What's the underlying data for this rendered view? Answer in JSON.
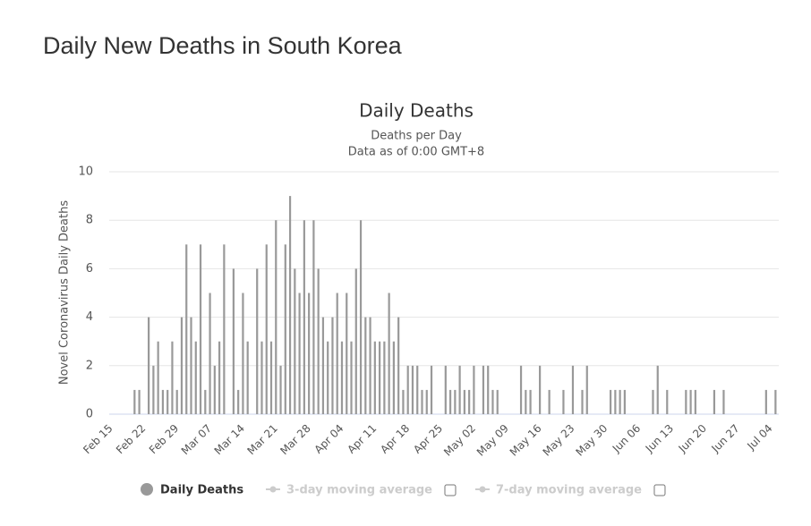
{
  "page_title": "Daily New Deaths in South Korea",
  "chart_data": {
    "type": "bar",
    "title": "Daily Deaths",
    "subtitle": [
      "Deaths per Day",
      "Data as of 0:00 GMT+8"
    ],
    "y_axis_label": "Novel Coronavirus Daily Deaths",
    "categories": [
      "Feb 15",
      null,
      null,
      null,
      null,
      null,
      null,
      "Feb 22",
      null,
      null,
      null,
      null,
      null,
      null,
      "Feb 29",
      null,
      null,
      null,
      null,
      null,
      null,
      "Mar 07",
      null,
      null,
      null,
      null,
      null,
      null,
      "Mar 14",
      null,
      null,
      null,
      null,
      null,
      null,
      "Mar 21",
      null,
      null,
      null,
      null,
      null,
      null,
      "Mar 28",
      null,
      null,
      null,
      null,
      null,
      null,
      "Apr 04",
      null,
      null,
      null,
      null,
      null,
      null,
      "Apr 11",
      null,
      null,
      null,
      null,
      null,
      null,
      "Apr 18",
      null,
      null,
      null,
      null,
      null,
      null,
      "Apr 25",
      null,
      null,
      null,
      null,
      null,
      null,
      "May 02",
      null,
      null,
      null,
      null,
      null,
      null,
      "May 09",
      null,
      null,
      null,
      null,
      null,
      null,
      "May 16",
      null,
      null,
      null,
      null,
      null,
      null,
      "May 23",
      null,
      null,
      null,
      null,
      null,
      null,
      "May 30",
      null,
      null,
      null,
      null,
      null,
      null,
      "Jun 06",
      null,
      null,
      null,
      null,
      null,
      null,
      "Jun 13",
      null,
      null,
      null,
      null,
      null,
      null,
      "Jun 20",
      null,
      null,
      null,
      null,
      null,
      null,
      "Jun 27",
      null,
      null,
      null,
      null,
      null,
      null,
      "Jul 04",
      null
    ],
    "series": [
      {
        "name": "Daily Deaths",
        "color": "#999999",
        "values": [
          0,
          0,
          0,
          0,
          0,
          1,
          1,
          0,
          4,
          2,
          3,
          1,
          1,
          3,
          1,
          4,
          7,
          4,
          3,
          7,
          1,
          5,
          2,
          3,
          7,
          0,
          6,
          1,
          5,
          3,
          0,
          6,
          3,
          7,
          3,
          8,
          2,
          7,
          9,
          6,
          5,
          8,
          5,
          8,
          6,
          4,
          3,
          4,
          5,
          3,
          5,
          3,
          6,
          8,
          4,
          4,
          3,
          3,
          3,
          5,
          3,
          4,
          1,
          2,
          2,
          2,
          1,
          1,
          2,
          0,
          0,
          2,
          1,
          1,
          2,
          1,
          1,
          2,
          0,
          2,
          2,
          1,
          1,
          0,
          0,
          0,
          0,
          2,
          1,
          1,
          0,
          2,
          0,
          1,
          0,
          0,
          1,
          0,
          2,
          0,
          1,
          2,
          0,
          0,
          0,
          0,
          1,
          1,
          1,
          1,
          0,
          0,
          0,
          0,
          0,
          1,
          2,
          0,
          1,
          0,
          0,
          0,
          1,
          1,
          1,
          0,
          0,
          0,
          1,
          0,
          1,
          0,
          0,
          0,
          0,
          0,
          0,
          0,
          0,
          1,
          0,
          1
        ]
      }
    ],
    "disabled_legend": [
      "3-day moving average",
      "7-day moving average"
    ],
    "ylim": [
      0,
      10
    ],
    "yticks": [
      0,
      2,
      4,
      6,
      8,
      10
    ],
    "grid": true
  }
}
